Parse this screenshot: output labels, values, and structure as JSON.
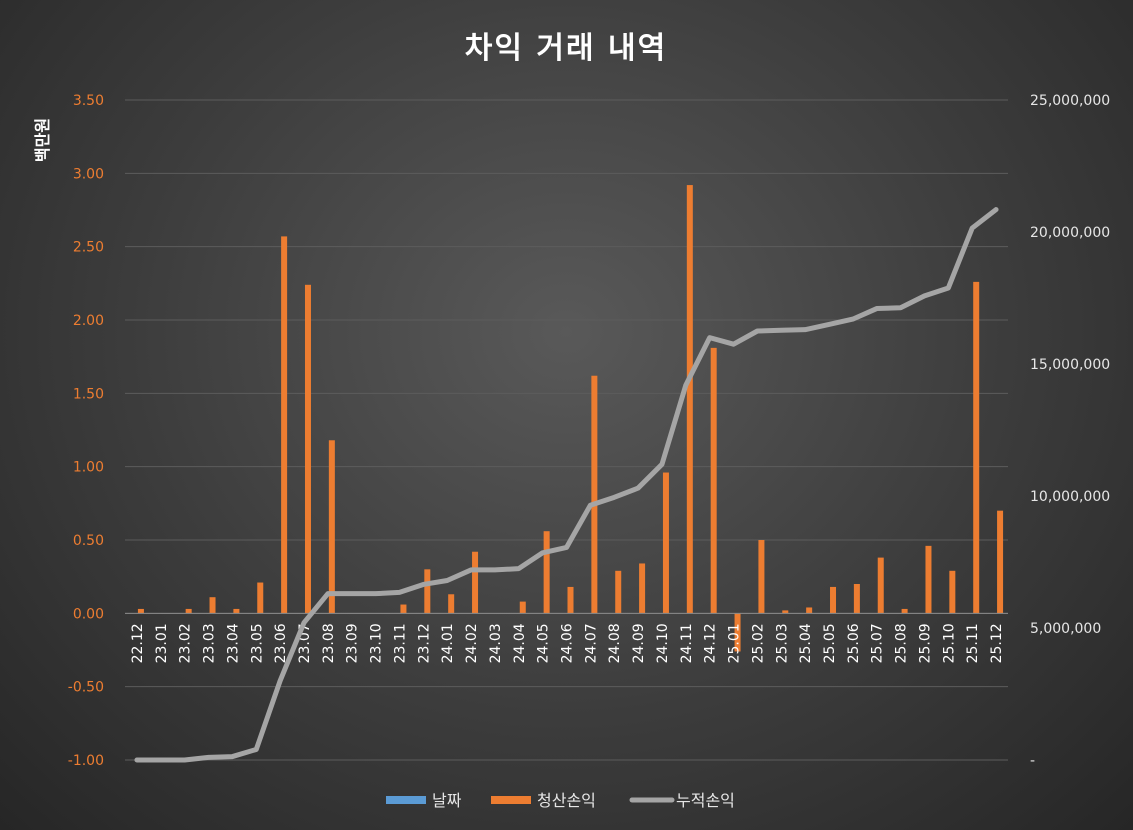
{
  "chart_data": {
    "type": "bar",
    "title": "차익 거래 내역",
    "ylabel": "백만원",
    "ylim": [
      -1.0,
      3.5
    ],
    "y_ticks": [
      "-1.00",
      "-0.50",
      "0.00",
      "0.50",
      "1.00",
      "1.50",
      "2.00",
      "2.50",
      "3.00",
      "3.50"
    ],
    "y2lim": [
      0,
      25000000
    ],
    "y2_ticks": [
      "-",
      "5,000,000",
      "10,000,000",
      "15,000,000",
      "20,000,000",
      "25,000,000"
    ],
    "categories": [
      "22.12",
      "23.01",
      "23.02",
      "23.03",
      "23.04",
      "23.05",
      "23.06",
      "23.07",
      "23.08",
      "23.09",
      "23.10",
      "23.11",
      "23.12",
      "24.01",
      "24.02",
      "24.03",
      "24.04",
      "24.05",
      "24.06",
      "24.07",
      "24.08",
      "24.09",
      "24.10",
      "24.11",
      "24.12",
      "25.01",
      "25.02",
      "25.03",
      "25.04",
      "25.05",
      "25.06",
      "25.07",
      "25.08",
      "25.09",
      "25.10",
      "25.11",
      "25.12"
    ],
    "series": [
      {
        "name": "날짜",
        "type": "bar",
        "color": "#5b9bd5",
        "values": [
          0,
          0,
          0,
          0,
          0,
          0,
          0,
          0,
          0,
          0,
          0,
          0,
          0,
          0,
          0,
          0,
          0,
          0,
          0,
          0,
          0,
          0,
          0,
          0,
          0,
          0,
          0,
          0,
          0,
          0,
          0,
          0,
          0,
          0,
          0,
          0,
          0
        ]
      },
      {
        "name": "청산손익",
        "type": "bar",
        "axis": "left",
        "color": "#ed7d31",
        "values": [
          0.03,
          0.0,
          0.03,
          0.11,
          0.03,
          0.21,
          2.57,
          2.24,
          1.18,
          0.0,
          0.0,
          0.06,
          0.3,
          0.13,
          0.42,
          0.0,
          0.08,
          0.56,
          0.18,
          1.62,
          0.29,
          0.34,
          0.96,
          2.92,
          1.81,
          -0.26,
          0.5,
          0.02,
          0.04,
          0.18,
          0.2,
          0.38,
          0.03,
          0.46,
          0.29,
          2.26,
          0.7
        ]
      },
      {
        "name": "누적손익",
        "type": "line",
        "axis": "right",
        "color": "#a5a5a5",
        "values": [
          0,
          0,
          0,
          100000,
          130000,
          400000,
          3000000,
          5200000,
          6300000,
          6300000,
          6300000,
          6350000,
          6650000,
          6800000,
          7200000,
          7200000,
          7250000,
          7850000,
          8050000,
          9650000,
          9950000,
          10300000,
          11200000,
          14200000,
          16000000,
          15750000,
          16250000,
          16280000,
          16300000,
          16500000,
          16700000,
          17100000,
          17130000,
          17580000,
          17880000,
          20150000,
          20850000
        ]
      }
    ],
    "legend_position": "bottom",
    "grid": true
  }
}
